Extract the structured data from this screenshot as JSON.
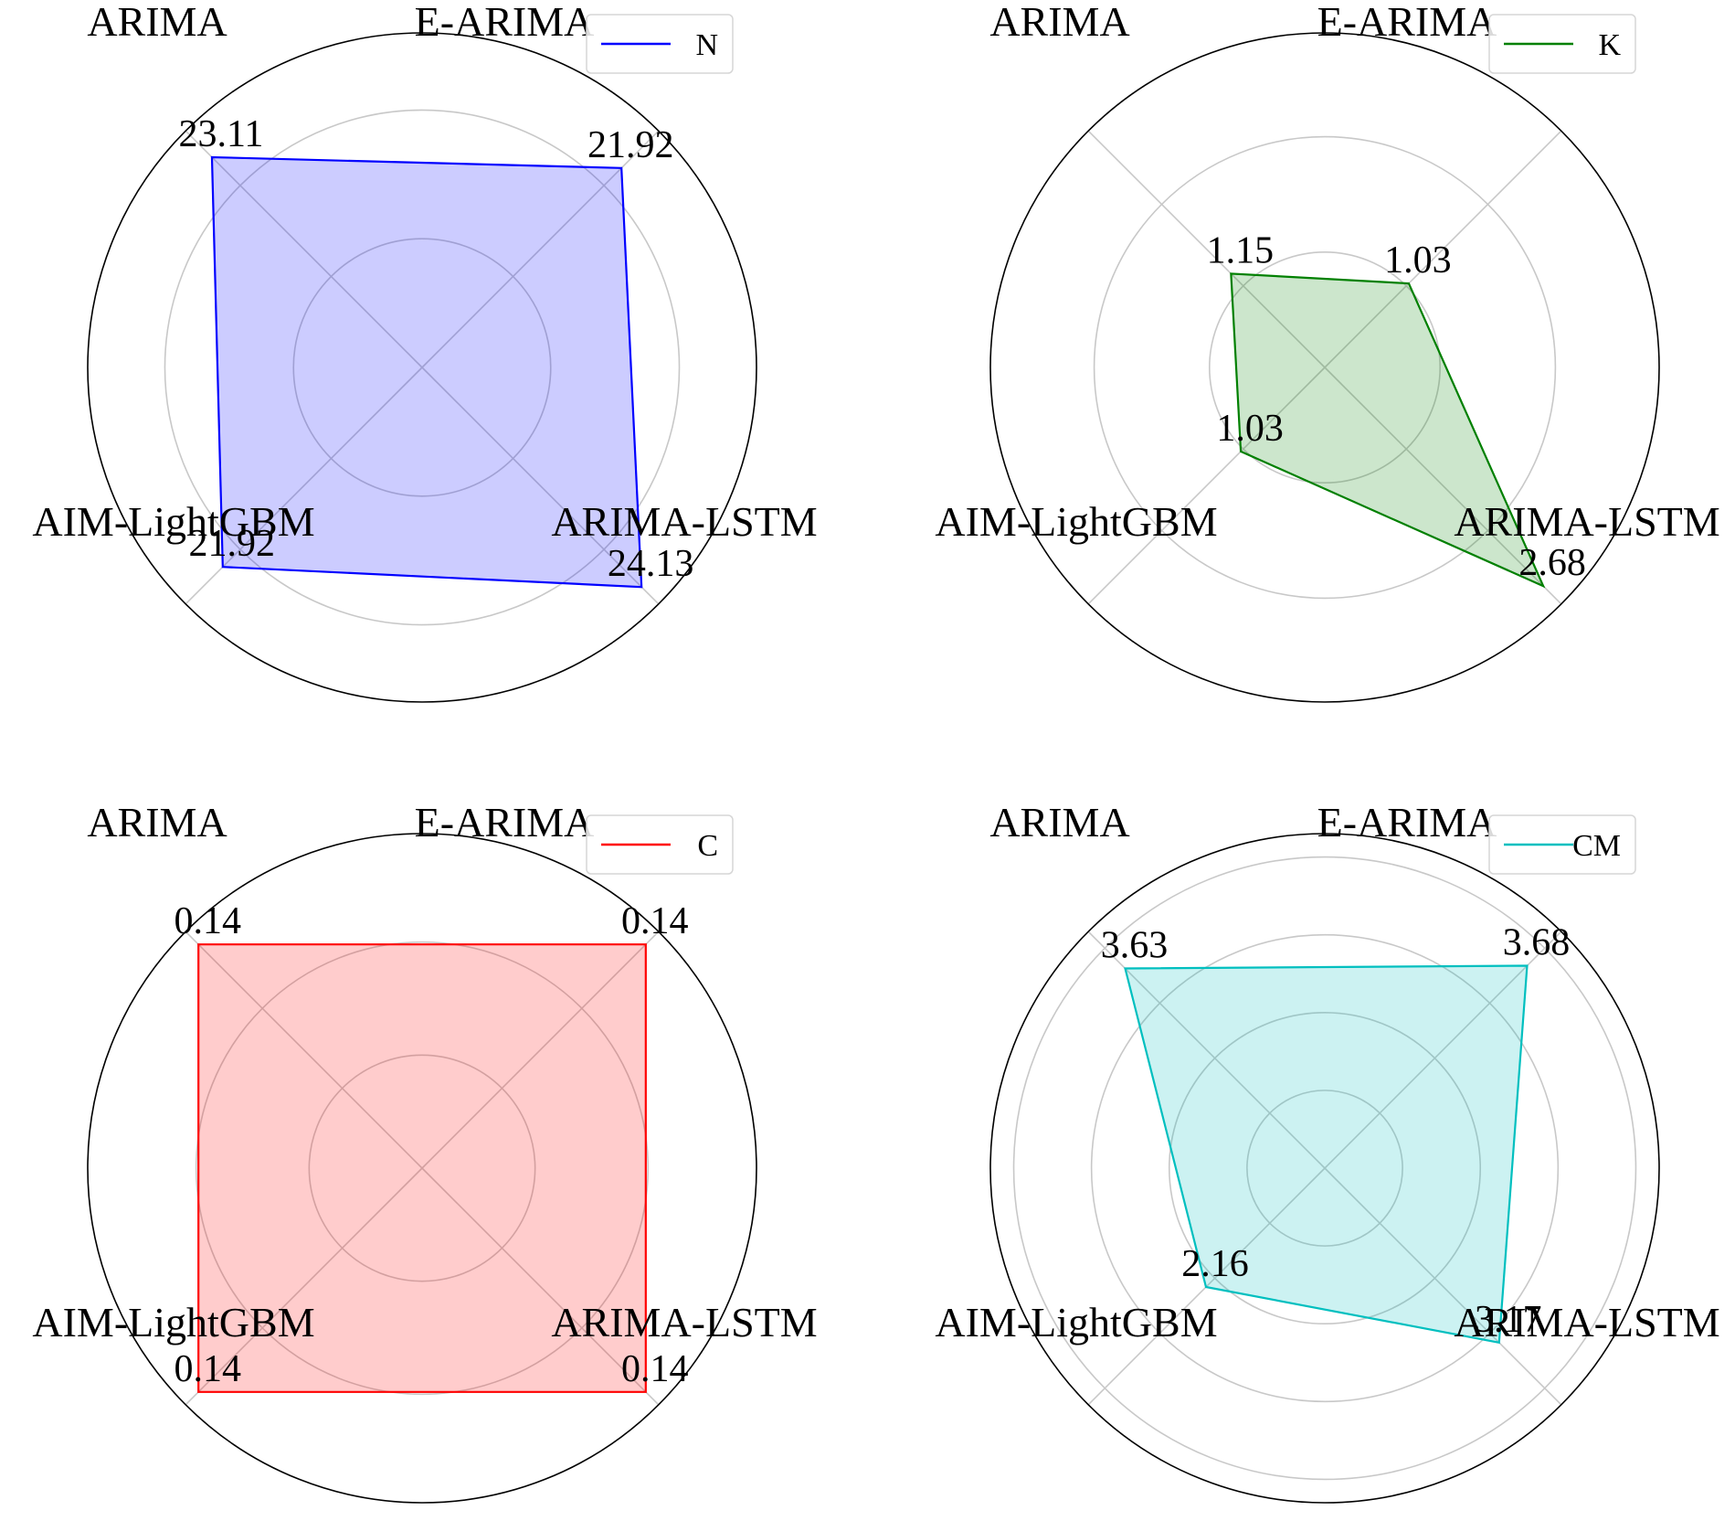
{
  "chart_data": [
    {
      "type": "radar",
      "categories": [
        "E-ARIMA",
        "ARIMA",
        "AIM-LightGBM",
        "ARIMA-LSTM"
      ],
      "series": [
        {
          "name": "N",
          "values": [
            21.92,
            23.11,
            21.92,
            24.13
          ],
          "color": "#0000ff"
        }
      ],
      "value_labels": [
        "21.92",
        "23.11",
        "21.92",
        "24.13"
      ],
      "rlim": [
        0,
        26
      ],
      "grid": true,
      "legend_position": "top-right"
    },
    {
      "type": "radar",
      "categories": [
        "E-ARIMA",
        "ARIMA",
        "AIM-LightGBM",
        "ARIMA-LSTM"
      ],
      "series": [
        {
          "name": "K",
          "values": [
            1.03,
            1.15,
            1.03,
            2.68
          ],
          "color": "#008000"
        }
      ],
      "value_labels": [
        "1.03",
        "1.15",
        "1.03",
        "2.68"
      ],
      "rlim": [
        0,
        2.9
      ],
      "grid": true,
      "legend_position": "top-right"
    },
    {
      "type": "radar",
      "categories": [
        "E-ARIMA",
        "ARIMA",
        "AIM-LightGBM",
        "ARIMA-LSTM"
      ],
      "series": [
        {
          "name": "C",
          "values": [
            0.14,
            0.14,
            0.14,
            0.14
          ],
          "color": "#ff0000"
        }
      ],
      "value_labels": [
        "0.14",
        "0.14",
        "0.14",
        "0.14"
      ],
      "rlim": [
        0,
        0.148
      ],
      "grid": true,
      "legend_position": "top-right"
    },
    {
      "type": "radar",
      "categories": [
        "E-ARIMA",
        "ARIMA",
        "AIM-LightGBM",
        "ARIMA-LSTM"
      ],
      "series": [
        {
          "name": "CM",
          "values": [
            3.68,
            3.63,
            2.16,
            3.17
          ],
          "color": "#00bfbf"
        }
      ],
      "value_labels": [
        "3.68",
        "3.63",
        "2.16",
        "3.17"
      ],
      "rlim": [
        0,
        4.3
      ],
      "grid": true,
      "legend_position": "top-right"
    }
  ]
}
